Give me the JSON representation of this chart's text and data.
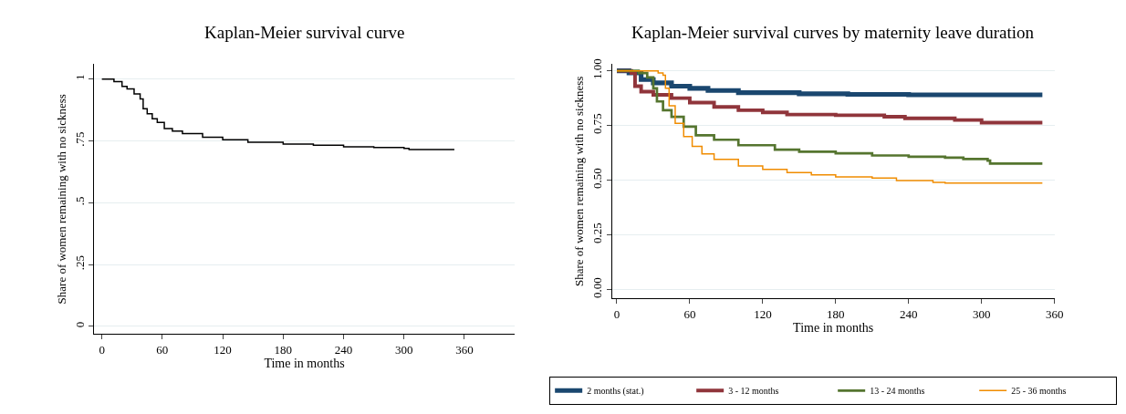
{
  "chart_data": [
    {
      "type": "step",
      "title": "Kaplan-Meier survival curve",
      "xlabel": "Time in months",
      "ylabel": "Share of women remaining with no sickness",
      "xlim": [
        -8,
        410
      ],
      "ylim": [
        -0.03,
        1.06
      ],
      "xticks": [
        0,
        60,
        120,
        180,
        240,
        300,
        360
      ],
      "yticks": [
        {
          "value": 0,
          "label": "0"
        },
        {
          "value": 0.25,
          "label": ".25"
        },
        {
          "value": 0.5,
          "label": ".5"
        },
        {
          "value": 0.75,
          "label": ".75"
        },
        {
          "value": 1,
          "label": "1"
        }
      ],
      "grid": "y",
      "legend": false,
      "series": [
        {
          "color": "#000000",
          "x": [
            0,
            5,
            12,
            20,
            25,
            32,
            38,
            41,
            45,
            50,
            55,
            62,
            70,
            80,
            100,
            120,
            145,
            180,
            210,
            240,
            270,
            300,
            305,
            350
          ],
          "values": [
            1,
            1,
            0.99,
            0.97,
            0.96,
            0.94,
            0.92,
            0.88,
            0.86,
            0.84,
            0.825,
            0.8,
            0.79,
            0.78,
            0.765,
            0.755,
            0.745,
            0.737,
            0.733,
            0.726,
            0.723,
            0.72,
            0.715,
            0.715
          ]
        }
      ]
    },
    {
      "type": "step",
      "title": "Kaplan-Meier survival curves by maternity leave duration",
      "xlabel": "Time in months",
      "ylabel": "Share of women remaining with no sickness",
      "xlim": [
        -4,
        360
      ],
      "ylim": [
        -0.04,
        1.03
      ],
      "xticks": [
        0,
        60,
        120,
        180,
        240,
        300,
        360
      ],
      "yticks": [
        {
          "value": 0,
          "label": "0.00"
        },
        {
          "value": 0.25,
          "label": "0.25"
        },
        {
          "value": 0.5,
          "label": "0.50"
        },
        {
          "value": 0.75,
          "label": "0.75"
        },
        {
          "value": 1,
          "label": "1.00"
        }
      ],
      "grid": "y",
      "legend": "bottom",
      "series": [
        {
          "name": "2 months (stat.)",
          "color": "#1a476f",
          "x": [
            0,
            10,
            20,
            30,
            45,
            60,
            75,
            100,
            150,
            190,
            240,
            350
          ],
          "values": [
            1,
            0.99,
            0.96,
            0.945,
            0.93,
            0.92,
            0.91,
            0.9,
            0.895,
            0.892,
            0.89,
            0.89
          ]
        },
        {
          "name": "3 - 12 months",
          "color": "#90353b",
          "x": [
            0,
            12,
            15,
            20,
            30,
            45,
            60,
            80,
            100,
            120,
            140,
            180,
            220,
            237,
            278,
            300,
            350
          ],
          "values": [
            1,
            0.99,
            0.93,
            0.905,
            0.89,
            0.875,
            0.855,
            0.835,
            0.82,
            0.81,
            0.8,
            0.797,
            0.79,
            0.783,
            0.775,
            0.763,
            0.763
          ]
        },
        {
          "name": "13 - 24 months",
          "color": "#55752f",
          "x": [
            0,
            18,
            25,
            30,
            33,
            38,
            45,
            55,
            65,
            80,
            100,
            130,
            150,
            180,
            210,
            240,
            270,
            285,
            305,
            307,
            350
          ],
          "values": [
            1,
            0.99,
            0.97,
            0.92,
            0.86,
            0.82,
            0.79,
            0.745,
            0.705,
            0.685,
            0.66,
            0.64,
            0.63,
            0.623,
            0.613,
            0.607,
            0.603,
            0.597,
            0.59,
            0.576,
            0.576
          ]
        },
        {
          "name": "25 - 36 months",
          "color": "#f08c00",
          "x": [
            0,
            27,
            34,
            38,
            40,
            43,
            48,
            55,
            62,
            70,
            80,
            100,
            120,
            140,
            160,
            180,
            210,
            230,
            260,
            270,
            350
          ],
          "values": [
            1,
            1,
            0.99,
            0.98,
            0.92,
            0.84,
            0.76,
            0.7,
            0.655,
            0.62,
            0.595,
            0.565,
            0.55,
            0.535,
            0.525,
            0.515,
            0.51,
            0.498,
            0.49,
            0.487,
            0.487
          ]
        }
      ]
    }
  ]
}
